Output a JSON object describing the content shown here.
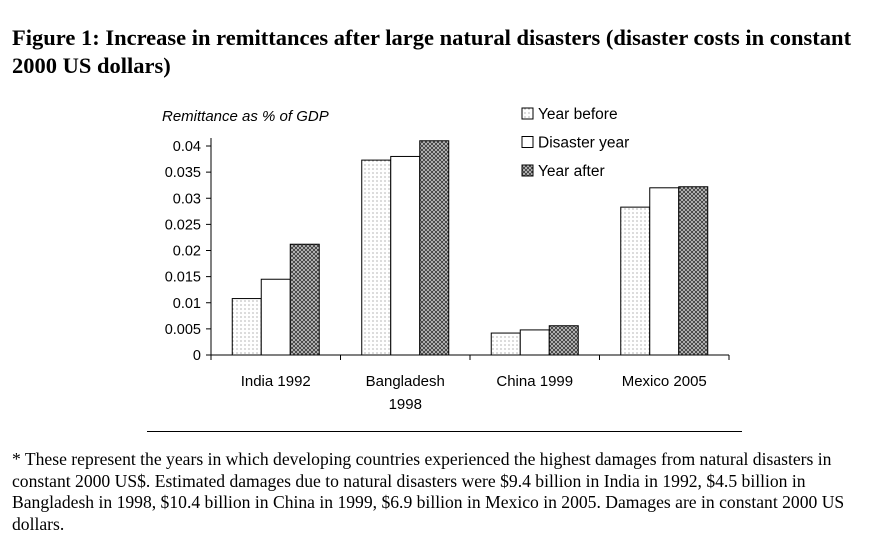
{
  "title": "Figure 1: Increase in remittances after large natural disasters (disaster costs in constant 2000 US dollars)",
  "note": "* These represent the years in which developing countries experienced the highest damages from natural disasters in constant 2000 US$. Estimated damages due to natural disasters were $9.4 billion in India in 1992, $4.5 billion in Bangladesh in 1998, $10.4 billion in China in 1999, $6.9 billion in Mexico in 2005. Damages are in constant 2000 US dollars.",
  "chart_data": {
    "type": "bar",
    "ylabel": "Remittance as % of GDP",
    "ylim": [
      0,
      0.04
    ],
    "yticks": [
      "0.04",
      "0.035",
      "0.03",
      "0.025",
      "0.02",
      "0.015",
      "0.01",
      "0.005",
      "0"
    ],
    "categories": [
      [
        "India 1992"
      ],
      [
        "Bangladesh",
        "1998"
      ],
      [
        "China 1999"
      ],
      [
        "Mexico 2005"
      ]
    ],
    "series": [
      {
        "name": "Year before",
        "pattern": "dots",
        "values": [
          0.0108,
          0.0373,
          0.0042,
          0.0283
        ]
      },
      {
        "name": "Disaster year",
        "pattern": "plain",
        "values": [
          0.0145,
          0.038,
          0.0048,
          0.032
        ]
      },
      {
        "name": "Year after",
        "pattern": "crosshatch",
        "values": [
          0.0212,
          0.041,
          0.0056,
          0.0322
        ]
      }
    ],
    "legend_position": "top-right",
    "grid": false
  }
}
